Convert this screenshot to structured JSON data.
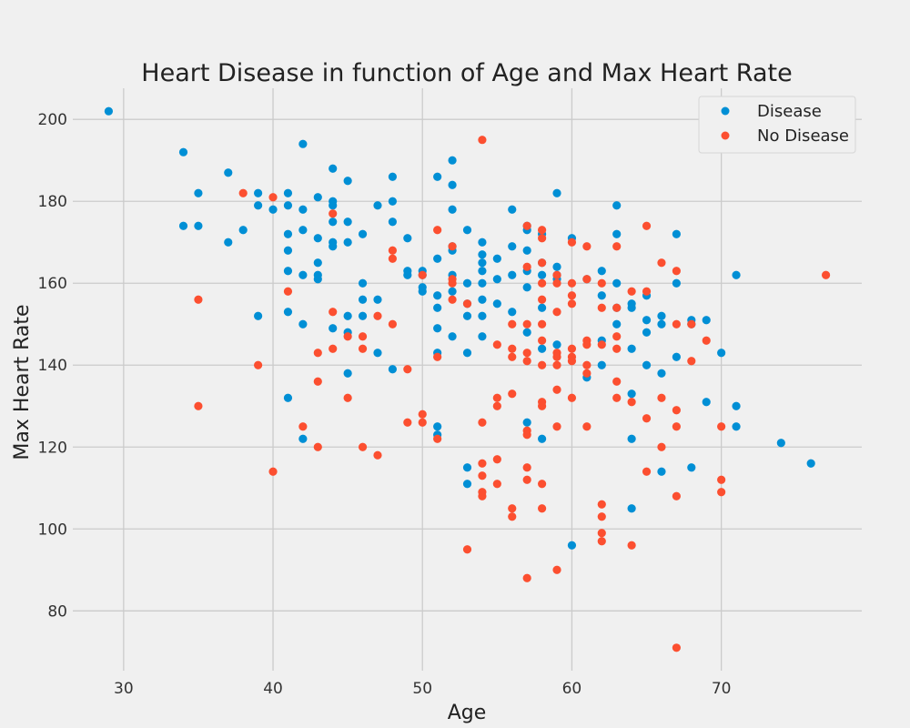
{
  "chart_data": {
    "type": "scatter",
    "title": "Heart Disease in function of Age and Max Heart Rate",
    "xlabel": "Age",
    "ylabel": "Max Heart Rate",
    "xlim": [
      26.6,
      79.4
    ],
    "ylim": [
      65.4,
      207.6
    ],
    "xticks": [
      30,
      40,
      50,
      60,
      70
    ],
    "yticks": [
      80,
      100,
      120,
      140,
      160,
      180,
      200
    ],
    "grid": true,
    "legend_position": "top-right",
    "series": [
      {
        "name": "Disease",
        "color": "#008fd5",
        "points": [
          [
            29,
            202
          ],
          [
            34,
            192
          ],
          [
            34,
            174
          ],
          [
            35,
            182
          ],
          [
            35,
            174
          ],
          [
            37,
            187
          ],
          [
            37,
            170
          ],
          [
            38,
            173
          ],
          [
            39,
            182
          ],
          [
            39,
            179
          ],
          [
            39,
            152
          ],
          [
            40,
            178
          ],
          [
            41,
            182
          ],
          [
            41,
            179
          ],
          [
            41,
            172
          ],
          [
            41,
            168
          ],
          [
            41,
            163
          ],
          [
            41,
            153
          ],
          [
            41,
            132
          ],
          [
            42,
            194
          ],
          [
            42,
            178
          ],
          [
            42,
            173
          ],
          [
            42,
            162
          ],
          [
            42,
            150
          ],
          [
            42,
            122
          ],
          [
            43,
            181
          ],
          [
            43,
            171
          ],
          [
            43,
            165
          ],
          [
            43,
            162
          ],
          [
            43,
            161
          ],
          [
            44,
            188
          ],
          [
            44,
            180
          ],
          [
            44,
            179
          ],
          [
            44,
            175
          ],
          [
            44,
            170
          ],
          [
            44,
            169
          ],
          [
            44,
            149
          ],
          [
            45,
            185
          ],
          [
            45,
            175
          ],
          [
            45,
            170
          ],
          [
            45,
            152
          ],
          [
            45,
            148
          ],
          [
            45,
            138
          ],
          [
            46,
            172
          ],
          [
            46,
            160
          ],
          [
            46,
            156
          ],
          [
            46,
            152
          ],
          [
            47,
            179
          ],
          [
            47,
            156
          ],
          [
            47,
            143
          ],
          [
            48,
            186
          ],
          [
            48,
            180
          ],
          [
            48,
            175
          ],
          [
            48,
            139
          ],
          [
            49,
            171
          ],
          [
            49,
            163
          ],
          [
            49,
            162
          ],
          [
            50,
            163
          ],
          [
            50,
            162
          ],
          [
            50,
            159
          ],
          [
            50,
            158
          ],
          [
            51,
            186
          ],
          [
            51,
            166
          ],
          [
            51,
            157
          ],
          [
            51,
            154
          ],
          [
            51,
            149
          ],
          [
            51,
            143
          ],
          [
            51,
            125
          ],
          [
            51,
            123
          ],
          [
            52,
            190
          ],
          [
            52,
            184
          ],
          [
            52,
            178
          ],
          [
            52,
            169
          ],
          [
            52,
            168
          ],
          [
            52,
            162
          ],
          [
            52,
            158
          ],
          [
            52,
            147
          ],
          [
            53,
            173
          ],
          [
            53,
            160
          ],
          [
            53,
            155
          ],
          [
            53,
            152
          ],
          [
            53,
            143
          ],
          [
            53,
            115
          ],
          [
            53,
            111
          ],
          [
            54,
            170
          ],
          [
            54,
            167
          ],
          [
            54,
            165
          ],
          [
            54,
            163
          ],
          [
            54,
            160
          ],
          [
            54,
            156
          ],
          [
            54,
            152
          ],
          [
            54,
            147
          ],
          [
            55,
            166
          ],
          [
            55,
            161
          ],
          [
            55,
            155
          ],
          [
            56,
            178
          ],
          [
            56,
            169
          ],
          [
            56,
            162
          ],
          [
            56,
            153
          ],
          [
            57,
            174
          ],
          [
            57,
            173
          ],
          [
            57,
            168
          ],
          [
            57,
            163
          ],
          [
            57,
            159
          ],
          [
            57,
            148
          ],
          [
            57,
            126
          ],
          [
            58,
            172
          ],
          [
            58,
            165
          ],
          [
            58,
            162
          ],
          [
            58,
            154
          ],
          [
            58,
            144
          ],
          [
            58,
            122
          ],
          [
            59,
            182
          ],
          [
            59,
            164
          ],
          [
            59,
            162
          ],
          [
            59,
            161
          ],
          [
            59,
            145
          ],
          [
            60,
            171
          ],
          [
            60,
            96
          ],
          [
            61,
            161
          ],
          [
            61,
            137
          ],
          [
            62,
            163
          ],
          [
            62,
            157
          ],
          [
            62,
            146
          ],
          [
            62,
            140
          ],
          [
            63,
            179
          ],
          [
            63,
            172
          ],
          [
            63,
            160
          ],
          [
            63,
            154
          ],
          [
            63,
            150
          ],
          [
            64,
            155
          ],
          [
            64,
            154
          ],
          [
            64,
            144
          ],
          [
            64,
            133
          ],
          [
            64,
            122
          ],
          [
            64,
            105
          ],
          [
            65,
            157
          ],
          [
            65,
            151
          ],
          [
            65,
            148
          ],
          [
            65,
            140
          ],
          [
            66,
            152
          ],
          [
            66,
            150
          ],
          [
            66,
            138
          ],
          [
            66,
            114
          ],
          [
            67,
            172
          ],
          [
            67,
            160
          ],
          [
            67,
            142
          ],
          [
            68,
            151
          ],
          [
            68,
            150
          ],
          [
            68,
            115
          ],
          [
            69,
            151
          ],
          [
            69,
            131
          ],
          [
            70,
            143
          ],
          [
            71,
            162
          ],
          [
            71,
            130
          ],
          [
            71,
            125
          ],
          [
            74,
            121
          ],
          [
            76,
            116
          ]
        ]
      },
      {
        "name": "No Disease",
        "color": "#fc4f30",
        "points": [
          [
            35,
            156
          ],
          [
            35,
            130
          ],
          [
            38,
            182
          ],
          [
            39,
            140
          ],
          [
            40,
            181
          ],
          [
            40,
            114
          ],
          [
            41,
            158
          ],
          [
            42,
            125
          ],
          [
            43,
            143
          ],
          [
            43,
            136
          ],
          [
            43,
            120
          ],
          [
            44,
            177
          ],
          [
            44,
            153
          ],
          [
            44,
            144
          ],
          [
            45,
            147
          ],
          [
            45,
            132
          ],
          [
            46,
            147
          ],
          [
            46,
            144
          ],
          [
            46,
            120
          ],
          [
            47,
            152
          ],
          [
            47,
            118
          ],
          [
            48,
            168
          ],
          [
            48,
            166
          ],
          [
            48,
            150
          ],
          [
            49,
            139
          ],
          [
            49,
            126
          ],
          [
            50,
            162
          ],
          [
            50,
            128
          ],
          [
            50,
            126
          ],
          [
            51,
            173
          ],
          [
            51,
            142
          ],
          [
            51,
            122
          ],
          [
            52,
            169
          ],
          [
            52,
            161
          ],
          [
            52,
            160
          ],
          [
            52,
            156
          ],
          [
            53,
            155
          ],
          [
            53,
            95
          ],
          [
            54,
            195
          ],
          [
            54,
            126
          ],
          [
            54,
            116
          ],
          [
            54,
            113
          ],
          [
            54,
            109
          ],
          [
            54,
            108
          ],
          [
            55,
            145
          ],
          [
            55,
            132
          ],
          [
            55,
            130
          ],
          [
            55,
            117
          ],
          [
            55,
            111
          ],
          [
            56,
            150
          ],
          [
            56,
            144
          ],
          [
            56,
            142
          ],
          [
            56,
            133
          ],
          [
            56,
            105
          ],
          [
            56,
            103
          ],
          [
            57,
            174
          ],
          [
            57,
            164
          ],
          [
            57,
            150
          ],
          [
            57,
            143
          ],
          [
            57,
            141
          ],
          [
            57,
            124
          ],
          [
            57,
            123
          ],
          [
            57,
            115
          ],
          [
            57,
            112
          ],
          [
            57,
            88
          ],
          [
            58,
            173
          ],
          [
            58,
            171
          ],
          [
            58,
            165
          ],
          [
            58,
            160
          ],
          [
            58,
            156
          ],
          [
            58,
            150
          ],
          [
            58,
            146
          ],
          [
            58,
            140
          ],
          [
            58,
            131
          ],
          [
            58,
            130
          ],
          [
            58,
            111
          ],
          [
            58,
            105
          ],
          [
            59,
            162
          ],
          [
            59,
            160
          ],
          [
            59,
            153
          ],
          [
            59,
            143
          ],
          [
            59,
            142
          ],
          [
            59,
            140
          ],
          [
            59,
            134
          ],
          [
            59,
            125
          ],
          [
            59,
            90
          ],
          [
            60,
            170
          ],
          [
            60,
            160
          ],
          [
            60,
            157
          ],
          [
            60,
            155
          ],
          [
            60,
            144
          ],
          [
            60,
            142
          ],
          [
            60,
            141
          ],
          [
            60,
            132
          ],
          [
            61,
            169
          ],
          [
            61,
            161
          ],
          [
            61,
            146
          ],
          [
            61,
            145
          ],
          [
            61,
            140
          ],
          [
            61,
            138
          ],
          [
            61,
            125
          ],
          [
            62,
            160
          ],
          [
            62,
            154
          ],
          [
            62,
            145
          ],
          [
            62,
            106
          ],
          [
            62,
            103
          ],
          [
            62,
            99
          ],
          [
            62,
            97
          ],
          [
            63,
            169
          ],
          [
            63,
            154
          ],
          [
            63,
            147
          ],
          [
            63,
            144
          ],
          [
            63,
            136
          ],
          [
            63,
            132
          ],
          [
            64,
            158
          ],
          [
            64,
            131
          ],
          [
            64,
            96
          ],
          [
            65,
            174
          ],
          [
            65,
            158
          ],
          [
            65,
            127
          ],
          [
            65,
            114
          ],
          [
            66,
            165
          ],
          [
            66,
            132
          ],
          [
            66,
            120
          ],
          [
            67,
            163
          ],
          [
            67,
            150
          ],
          [
            67,
            129
          ],
          [
            67,
            125
          ],
          [
            67,
            108
          ],
          [
            67,
            71
          ],
          [
            68,
            150
          ],
          [
            68,
            141
          ],
          [
            69,
            146
          ],
          [
            70,
            125
          ],
          [
            70,
            112
          ],
          [
            70,
            109
          ],
          [
            77,
            162
          ]
        ]
      }
    ]
  }
}
